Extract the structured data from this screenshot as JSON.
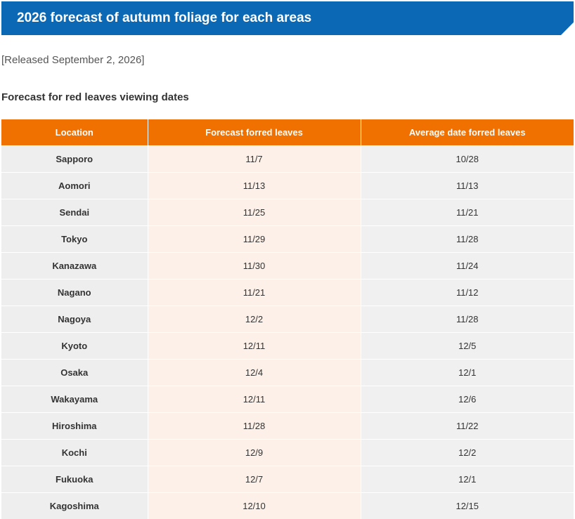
{
  "header": {
    "title": "2026 forecast of autumn foliage for each areas",
    "accent_color": "#0a68b5"
  },
  "release_note": "[Released September 2, 2026]",
  "section": {
    "title": "Forecast for red leaves viewing dates"
  },
  "table": {
    "header_color": "#f07000",
    "columns": [
      "Location",
      "Forecast forred leaves",
      "Average date forred leaves"
    ],
    "rows": [
      {
        "location": "Sapporo",
        "forecast": "11/7",
        "average": "10/28"
      },
      {
        "location": "Aomori",
        "forecast": "11/13",
        "average": "11/13"
      },
      {
        "location": "Sendai",
        "forecast": "11/25",
        "average": "11/21"
      },
      {
        "location": "Tokyo",
        "forecast": "11/29",
        "average": "11/28"
      },
      {
        "location": "Kanazawa",
        "forecast": "11/30",
        "average": "11/24"
      },
      {
        "location": "Nagano",
        "forecast": "11/21",
        "average": "11/12"
      },
      {
        "location": "Nagoya",
        "forecast": "12/2",
        "average": "11/28"
      },
      {
        "location": "Kyoto",
        "forecast": "12/11",
        "average": "12/5"
      },
      {
        "location": "Osaka",
        "forecast": "12/4",
        "average": "12/1"
      },
      {
        "location": "Wakayama",
        "forecast": "12/11",
        "average": "12/6"
      },
      {
        "location": "Hiroshima",
        "forecast": "11/28",
        "average": "11/22"
      },
      {
        "location": "Kochi",
        "forecast": "12/9",
        "average": "12/2"
      },
      {
        "location": "Fukuoka",
        "forecast": "12/7",
        "average": "12/1"
      },
      {
        "location": "Kagoshima",
        "forecast": "12/10",
        "average": "12/15"
      }
    ]
  }
}
